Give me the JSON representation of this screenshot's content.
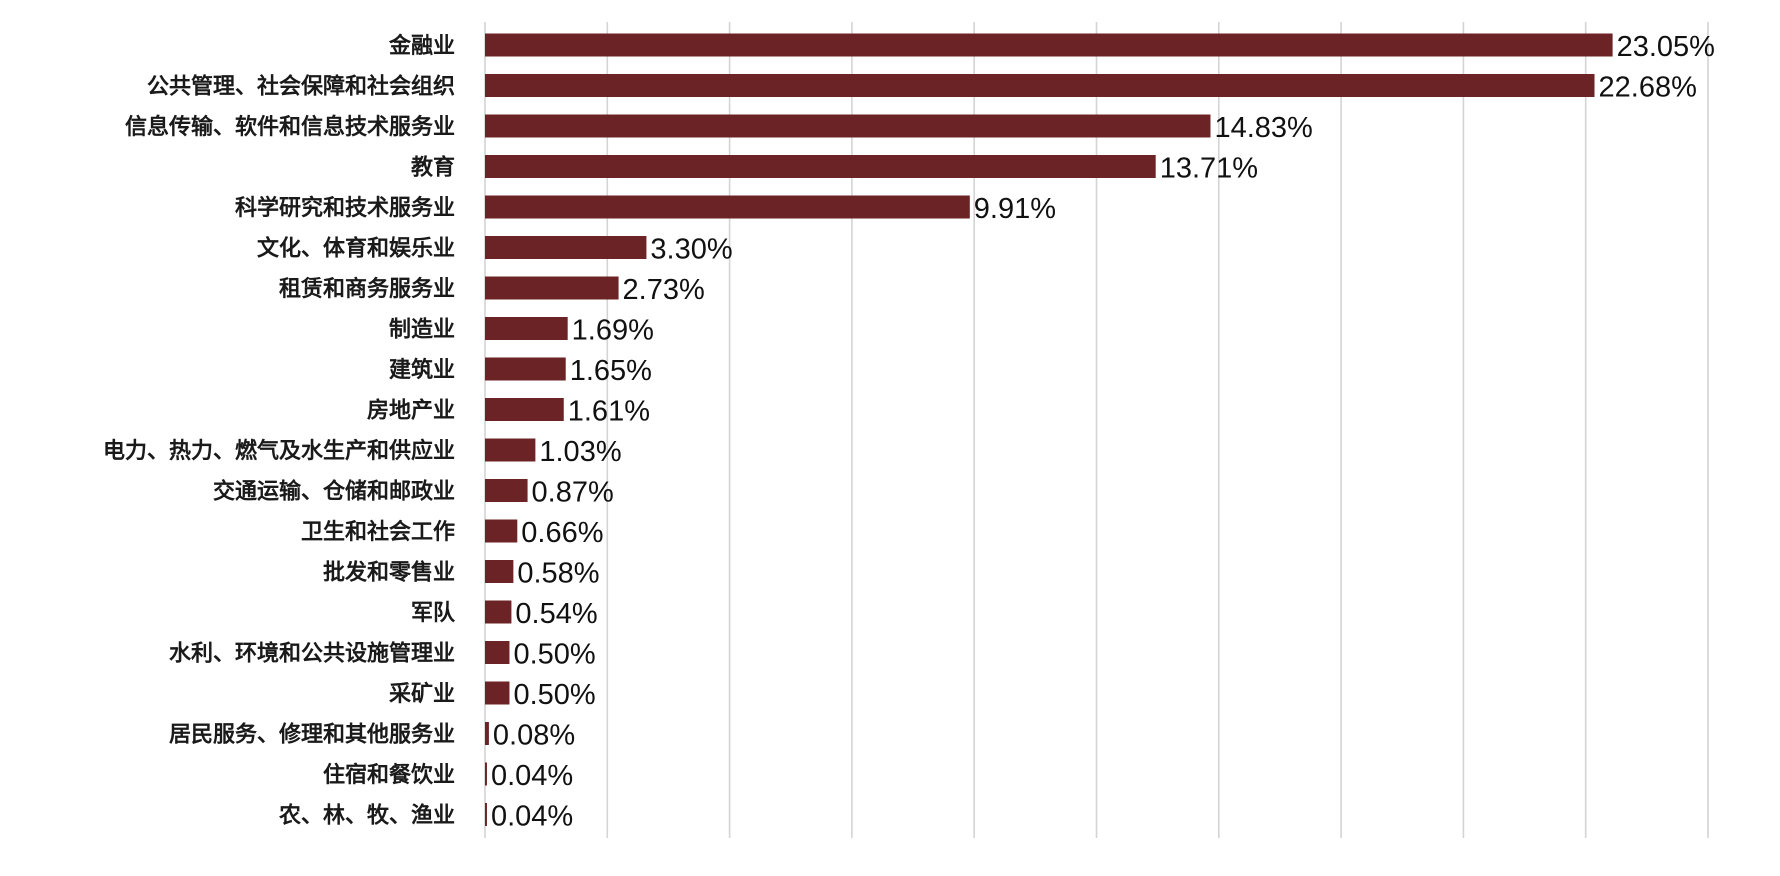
{
  "chart_data": {
    "type": "bar",
    "orientation": "horizontal",
    "title": "",
    "xlabel": "",
    "ylabel": "",
    "xlim": [
      0,
      25
    ],
    "x_tick_step": 2.5,
    "grid": "vertical",
    "bar_color": "#6b2326",
    "categories": [
      "金融业",
      "公共管理、社会保障和社会组织",
      "信息传输、软件和信息技术服务业",
      "教育",
      "科学研究和技术服务业",
      "文化、体育和娱乐业",
      "租赁和商务服务业",
      "制造业",
      "建筑业",
      "房地产业",
      "电力、热力、燃气及水生产和供应业",
      "交通运输、仓储和邮政业",
      "卫生和社会工作",
      "批发和零售业",
      "军队",
      "水利、环境和公共设施管理业",
      "采矿业",
      "居民服务、修理和其他服务业",
      "住宿和餐饮业",
      "农、林、牧、渔业"
    ],
    "values": [
      23.05,
      22.68,
      14.83,
      13.71,
      9.91,
      3.3,
      2.73,
      1.69,
      1.65,
      1.61,
      1.03,
      0.87,
      0.66,
      0.58,
      0.54,
      0.5,
      0.5,
      0.08,
      0.04,
      0.04
    ],
    "data_labels": [
      "23.05%",
      "22.68%",
      "14.83%",
      "13.71%",
      "9.91%",
      "3.30%",
      "2.73%",
      "1.69%",
      "1.65%",
      "1.61%",
      "1.03%",
      "0.87%",
      "0.66%",
      "0.58%",
      "0.54%",
      "0.50%",
      "0.50%",
      "0.08%",
      "0.04%",
      "0.04%"
    ]
  }
}
